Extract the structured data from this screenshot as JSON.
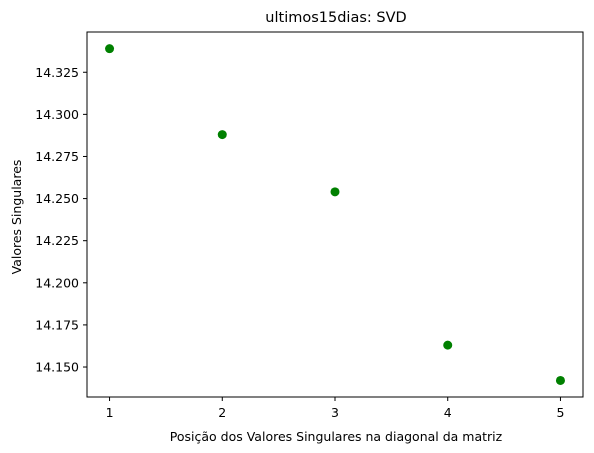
{
  "chart_data": {
    "type": "scatter",
    "title": "ultimos15dias: SVD",
    "xlabel": "Posição dos Valores Singulares na diagonal da matriz",
    "ylabel": "Valores Singulares",
    "x": [
      1,
      2,
      3,
      4,
      5
    ],
    "y": [
      14.339,
      14.288,
      14.254,
      14.163,
      14.142
    ],
    "xlim": [
      0.8,
      5.2
    ],
    "ylim": [
      14.1322,
      14.3489
    ],
    "xticks": [
      1,
      2,
      3,
      4,
      5
    ],
    "xtick_labels": [
      "1",
      "2",
      "3",
      "4",
      "5"
    ],
    "yticks": [
      14.15,
      14.175,
      14.2,
      14.225,
      14.25,
      14.275,
      14.3,
      14.325
    ],
    "ytick_labels": [
      "14.150",
      "14.175",
      "14.200",
      "14.225",
      "14.250",
      "14.275",
      "14.300",
      "14.325"
    ],
    "grid": false,
    "marker_color": "#008000"
  }
}
